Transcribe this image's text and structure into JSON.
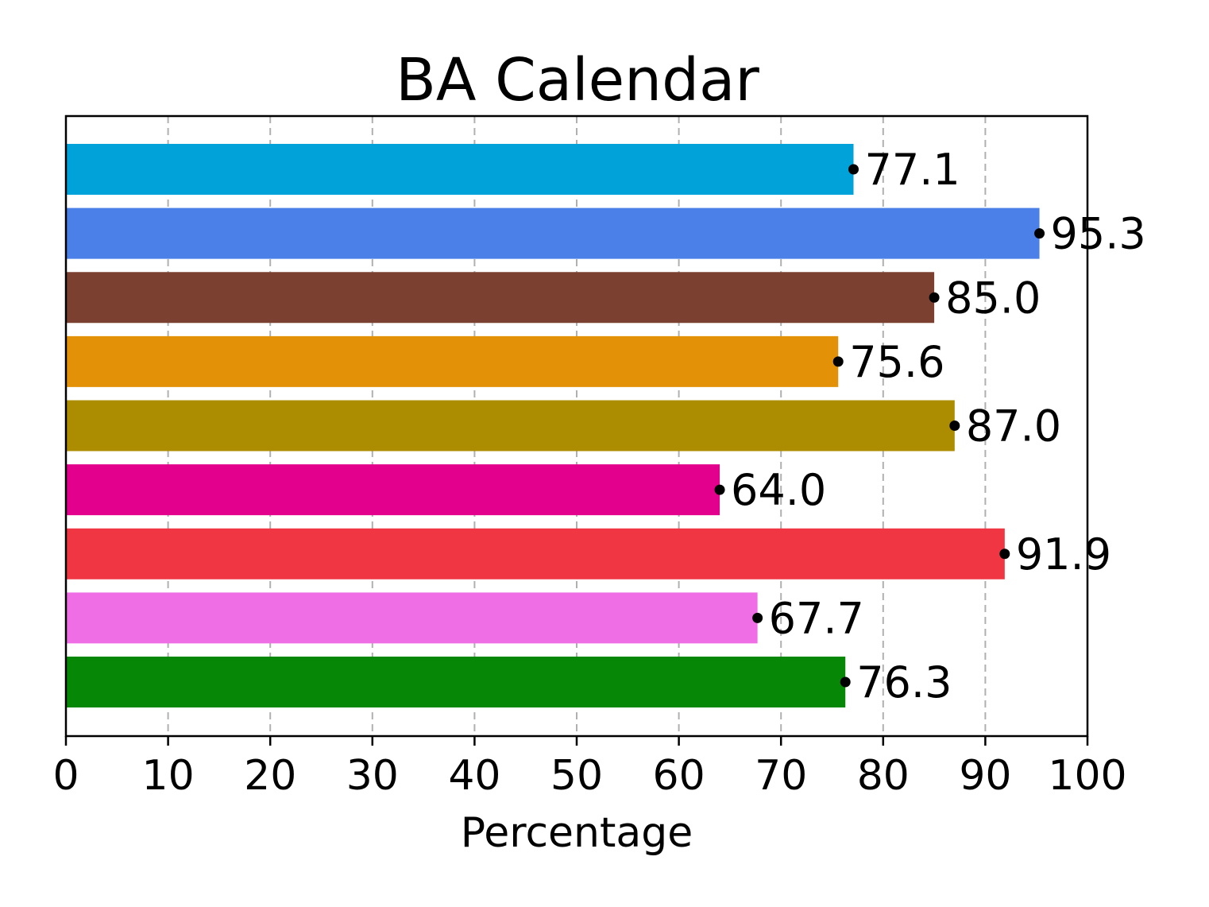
{
  "chart_data": {
    "type": "bar",
    "orientation": "horizontal",
    "title": "BA Calendar",
    "xlabel": "Percentage",
    "ylabel": "",
    "xlim": [
      0,
      100
    ],
    "xticks": [
      0,
      10,
      20,
      30,
      40,
      50,
      60,
      70,
      80,
      90,
      100
    ],
    "grid": "x-dashed",
    "values": [
      77.1,
      95.3,
      85.0,
      75.6,
      87.0,
      64.0,
      91.9,
      67.7,
      76.3
    ],
    "labels": [
      "77.1",
      "95.3",
      "85.0",
      "75.6",
      "87.0",
      "64.0",
      "91.9",
      "67.7",
      "76.3"
    ],
    "colors": [
      "#00a3d9",
      "#4a80e8",
      "#7b4030",
      "#e39208",
      "#ac8c00",
      "#e3008c",
      "#ef3642",
      "#ef6ee6",
      "#068806"
    ]
  }
}
